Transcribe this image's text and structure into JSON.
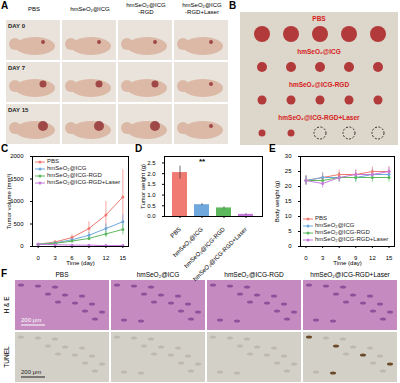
{
  "figure": {
    "panel_labels": [
      "A",
      "B",
      "C",
      "D",
      "E",
      "F"
    ],
    "A": {
      "groups": [
        [
          "PBS"
        ],
        [
          "hmSeO₂@ICG"
        ],
        [
          "hmSeO₂@ICG",
          "-RGD"
        ],
        [
          "hmSeO₂@ICG",
          "-RGD+Laser"
        ]
      ],
      "rows": [
        "DAY 0",
        "DAY 7",
        "DAY 15"
      ]
    },
    "B": {
      "labels": [
        "PBS",
        "hmSeO₂@ICG",
        "hmSeO₂@ICG-RGD",
        "hmSeO₂@ICG-RGD+Laser"
      ]
    },
    "F": {
      "groups": [
        "PBS",
        "hmSeO₂@ICG",
        "hmSeO₂@ICG-RGD",
        "hmSeO₂@ICG-RGD+Laser"
      ],
      "rows": [
        "H & E",
        "TUNEL"
      ],
      "scale_bar": "200 μm"
    }
  },
  "chart_data": [
    {
      "type": "line",
      "xlabel": "Time (day)",
      "ylabel": "Tumor volume (mm³)",
      "x": [
        0,
        3,
        6,
        9,
        12,
        15
      ],
      "xlim": [
        -1,
        16
      ],
      "xticks": [
        0,
        3,
        6,
        9,
        12,
        15
      ],
      "ylim": [
        0,
        2000
      ],
      "yticks": [
        0,
        500,
        1000,
        1500,
        2000
      ],
      "marker": "circle",
      "legend": "top-left",
      "series": [
        {
          "name": "PBS",
          "color": "#f07b72",
          "values": [
            50,
            100,
            200,
            400,
            700,
            1100
          ],
          "errors": [
            10,
            30,
            60,
            150,
            300,
            600
          ]
        },
        {
          "name": "hmSeO₂@ICG",
          "color": "#6fa8dc",
          "values": [
            50,
            80,
            150,
            250,
            400,
            550
          ],
          "errors": [
            10,
            20,
            40,
            60,
            100,
            150
          ]
        },
        {
          "name": "hmSeO₂@ICG-RGD",
          "color": "#5cb85c",
          "values": [
            50,
            70,
            120,
            180,
            280,
            380
          ],
          "errors": [
            10,
            15,
            30,
            50,
            80,
            120
          ]
        },
        {
          "name": "hmSeO₂@ICG-RGD+Laser",
          "color": "#c678dd",
          "values": [
            50,
            40,
            30,
            30,
            20,
            20
          ],
          "errors": [
            10,
            10,
            10,
            10,
            10,
            10
          ]
        }
      ]
    },
    {
      "type": "bar",
      "ylabel": "Tumor weight (g)",
      "categories": [
        "PBS",
        "hmSeO₂@ICG",
        "hmSeO₂@ICG-RGD",
        "hmSeO₂@ICG-RGD+Laser"
      ],
      "values": [
        2.05,
        0.55,
        0.4,
        0.1
      ],
      "errors": [
        0.3,
        0.05,
        0.05,
        0.03
      ],
      "colors": [
        "#f07b72",
        "#6fa8dc",
        "#5cb85c",
        "#c678dd"
      ],
      "ylim": [
        0,
        2.8
      ],
      "yticks": [
        {
          "value": 0,
          "label": "0.0"
        },
        0.5,
        {
          "value": 1,
          "label": "1.0"
        },
        1.5,
        {
          "value": 2,
          "label": "2.0"
        },
        2.5
      ],
      "annotations": [
        "**"
      ]
    },
    {
      "type": "line",
      "xlabel": "Time (day)",
      "ylabel": "Body weight (g)",
      "x": [
        0,
        3,
        6,
        9,
        12,
        15
      ],
      "xlim": [
        -1,
        16
      ],
      "xticks": [
        0,
        3,
        6,
        9,
        12,
        15
      ],
      "ylim": [
        0,
        30
      ],
      "yticks": [
        0,
        5,
        10,
        15,
        20,
        25,
        30
      ],
      "marker": "circle",
      "legend": "bottom-left",
      "series": [
        {
          "name": "PBS",
          "color": "#f07b72",
          "values": [
            22,
            23,
            24,
            24,
            25,
            25
          ],
          "errors": [
            1.5,
            1.5,
            1.5,
            1.5,
            1.5,
            1.5
          ]
        },
        {
          "name": "hmSeO₂@ICG",
          "color": "#6fa8dc",
          "values": [
            22,
            23,
            23,
            23,
            24,
            24
          ],
          "errors": [
            1.5,
            1.5,
            1.5,
            1.5,
            1.5,
            1.5
          ]
        },
        {
          "name": "hmSeO₂@ICG-RGD",
          "color": "#5cb85c",
          "values": [
            22,
            22,
            23,
            23,
            23,
            23
          ],
          "errors": [
            1.5,
            1.5,
            1.5,
            1.5,
            1.5,
            1.5
          ]
        },
        {
          "name": "hmSeO₂@ICG-RGD+Laser",
          "color": "#c678dd",
          "values": [
            22,
            21,
            23,
            24,
            24,
            25
          ],
          "errors": [
            1.5,
            1.5,
            1.5,
            1.5,
            1.5,
            1.5
          ]
        }
      ]
    }
  ]
}
